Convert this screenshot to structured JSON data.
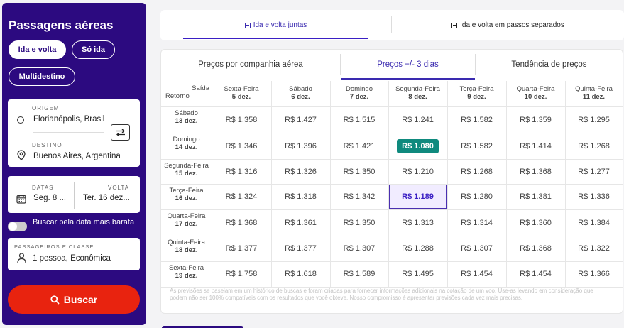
{
  "sidebar": {
    "title": "Passagens aéreas",
    "trip_types": [
      "Ida e volta",
      "Só ida",
      "Multidestino"
    ],
    "origin": {
      "label": "ORIGEM",
      "value": "Florianópolis, Brasil",
      "icon": "circle-icon"
    },
    "destination": {
      "label": "DESTINO",
      "value": "Buenos Aires, Argentina",
      "icon": "location-pin-icon"
    },
    "dates": {
      "label": "DATAS",
      "value": "Seg. 8 ...",
      "icon": "calendar-icon"
    },
    "return": {
      "label": "VOLTA",
      "value": "Ter. 16 dez..."
    },
    "flexible_toggle": "Buscar pela data mais barata",
    "passengers": {
      "label": "PASSAGEIROS E CLASSE",
      "value": "1 pessoa, Econômica",
      "icon": "person-icon"
    },
    "search_button": "Buscar"
  },
  "top_tabs": [
    "Ida e volta juntas",
    "Ida e volta em passos separados"
  ],
  "sub_tabs": [
    "Preços por companhia aérea",
    "Preços +/- 3 dias",
    "Tendência de preços"
  ],
  "table": {
    "corner": {
      "saida": "Saída",
      "retorno": "Retorno"
    },
    "columns": [
      {
        "day": "Sexta-Feira",
        "date": "5 dez."
      },
      {
        "day": "Sábado",
        "date": "6 dez."
      },
      {
        "day": "Domingo",
        "date": "7 dez."
      },
      {
        "day": "Segunda-Feira",
        "date": "8 dez."
      },
      {
        "day": "Terça-Feira",
        "date": "9 dez."
      },
      {
        "day": "Quarta-Feira",
        "date": "10 dez."
      },
      {
        "day": "Quinta-Feira",
        "date": "11 dez."
      }
    ],
    "rows": [
      {
        "day": "Sábado",
        "date": "13 dez.",
        "prices": [
          "R$ 1.358",
          "R$ 1.427",
          "R$ 1.515",
          "R$ 1.241",
          "R$ 1.582",
          "R$ 1.359",
          "R$ 1.295"
        ]
      },
      {
        "day": "Domingo",
        "date": "14 dez.",
        "prices": [
          "R$ 1.346",
          "R$ 1.396",
          "R$ 1.421",
          "R$ 1.080",
          "R$ 1.582",
          "R$ 1.414",
          "R$ 1.268"
        ]
      },
      {
        "day": "Segunda-Feira",
        "date": "15 dez.",
        "prices": [
          "R$ 1.316",
          "R$ 1.326",
          "R$ 1.350",
          "R$ 1.210",
          "R$ 1.268",
          "R$ 1.368",
          "R$ 1.277"
        ]
      },
      {
        "day": "Terça-Feira",
        "date": "16 dez.",
        "prices": [
          "R$ 1.324",
          "R$ 1.318",
          "R$ 1.342",
          "R$ 1.189",
          "R$ 1.280",
          "R$ 1.381",
          "R$ 1.336"
        ]
      },
      {
        "day": "Quarta-Feira",
        "date": "17 dez.",
        "prices": [
          "R$ 1.368",
          "R$ 1.361",
          "R$ 1.350",
          "R$ 1.313",
          "R$ 1.314",
          "R$ 1.360",
          "R$ 1.384"
        ]
      },
      {
        "day": "Quinta-Feira",
        "date": "18 dez.",
        "prices": [
          "R$ 1.377",
          "R$ 1.377",
          "R$ 1.307",
          "R$ 1.288",
          "R$ 1.307",
          "R$ 1.368",
          "R$ 1.322"
        ]
      },
      {
        "day": "Sexta-Feira",
        "date": "19 dez.",
        "prices": [
          "R$ 1.758",
          "R$ 1.618",
          "R$ 1.589",
          "R$ 1.495",
          "R$ 1.454",
          "R$ 1.454",
          "R$ 1.366"
        ]
      }
    ],
    "cheapest": {
      "row": 1,
      "col": 3
    },
    "selected": {
      "row": 3,
      "col": 3
    }
  },
  "disclaimer": "As previsões se baseiam em um histórico de buscas e foram criadas para fornecer informações adicionais na cotação de um voo. Use-as levando em consideração que podem não ser 100% compatíveis com os resultados que você obteve. Nosso compromisso é apresentar previsões cada vez mais precisas.",
  "colors": {
    "brand": "#2c0a80",
    "accent": "#3a2ab0",
    "search": "#e8230f",
    "best_price": "#0f8a7e",
    "selected_bg": "#f1ecff"
  }
}
